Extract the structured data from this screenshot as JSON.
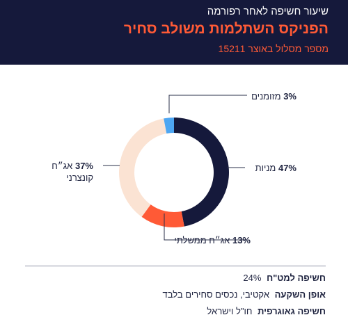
{
  "header": {
    "subtitle": "שיעור חשיפה לאחר רפורמה",
    "title": "הפניקס השתלמות משולב סחיר",
    "track_number": "מספר מסלול באוצר 15211"
  },
  "chart_data": {
    "type": "pie",
    "donut": true,
    "categories": [
      "מניות",
      "אג\"ח ממשלתי",
      "אג\"ח קונצרני",
      "מזומנים"
    ],
    "values": [
      47,
      13,
      37,
      3
    ],
    "colors": [
      "#15193b",
      "#ff5a36",
      "#fbe3d3",
      "#4da6f2"
    ],
    "value_labels": [
      "47%",
      "13%",
      "37%",
      "3%"
    ]
  },
  "labels": {
    "stocks": {
      "value": "47%",
      "name": "מניות"
    },
    "gov_bonds": {
      "value": "13%",
      "name": "אג״ח ממשלתי"
    },
    "corp_bonds": {
      "value": "37%",
      "name_line1": "אג״ח",
      "name_line2": "קונצרני"
    },
    "cash": {
      "value": "3%",
      "name": "מזומנים"
    }
  },
  "info": {
    "fx": {
      "label": "חשיפה למט\"ח",
      "value": "24%"
    },
    "investment": {
      "label": "אופן השקעה",
      "value": "אקטיבי, נכסים סחירים בלבד"
    },
    "geo": {
      "label": "חשיפה גאוגרפית",
      "value": "חו\"ל וישראל"
    }
  }
}
